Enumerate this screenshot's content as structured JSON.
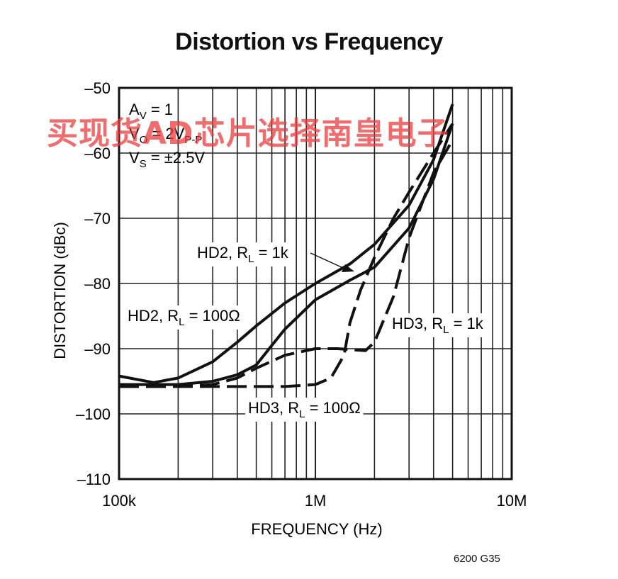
{
  "chart_data": {
    "type": "line",
    "title": "Distortion vs Frequency",
    "xlabel": "FREQUENCY (Hz)",
    "ylabel": "DISTORTION (dBc)",
    "xscale": "log",
    "xlim": [
      100000,
      10000000
    ],
    "ylim": [
      -110,
      -50
    ],
    "x_tick_labels": [
      {
        "value": 100000,
        "label": "100k"
      },
      {
        "value": 1000000,
        "label": "1M"
      },
      {
        "value": 10000000,
        "label": "10M"
      }
    ],
    "y_tick_labels": [
      {
        "value": -50,
        "label": "–50"
      },
      {
        "value": -60,
        "label": "–60"
      },
      {
        "value": -70,
        "label": "–70"
      },
      {
        "value": -80,
        "label": "–80"
      },
      {
        "value": -90,
        "label": "–90"
      },
      {
        "value": -100,
        "label": "–100"
      },
      {
        "value": -110,
        "label": "–110"
      }
    ],
    "grid": true,
    "legend": "none",
    "conditions": [
      {
        "main": "A",
        "sub": "V",
        "rest": " = 1"
      },
      {
        "main": "V",
        "sub": "O",
        "rest": " = 2V",
        "sub2": "P-P"
      },
      {
        "main": "V",
        "sub": "S",
        "rest": " = ±2.5V"
      }
    ],
    "series": [
      {
        "name": "HD2, RL = 100Ω",
        "style": "solid",
        "x": [
          100000,
          150000,
          200000,
          300000,
          400000,
          500000,
          700000,
          1000000,
          1500000,
          2000000,
          3000000,
          4000000,
          5000000
        ],
        "y": [
          -94.2,
          -95.2,
          -94.5,
          -92,
          -89,
          -86.5,
          -83,
          -80,
          -77,
          -74,
          -68,
          -61,
          -52.5
        ]
      },
      {
        "name": "HD2, RL = 1k",
        "style": "solid",
        "x": [
          100000,
          200000,
          300000,
          400000,
          500000,
          600000,
          700000,
          1000000,
          1500000,
          2000000,
          3000000,
          4000000,
          5000000
        ],
        "y": [
          -95.5,
          -95.5,
          -95,
          -94,
          -92.5,
          -89.5,
          -87,
          -82.5,
          -79.5,
          -77.5,
          -71.5,
          -64,
          -55.5
        ]
      },
      {
        "name": "HD3, RL = 1k",
        "style": "dashed",
        "x": [
          100000,
          150000,
          200000,
          300000,
          400000,
          500000,
          700000,
          1000000,
          1300000,
          1800000,
          2000000,
          2500000,
          3000000,
          4000000,
          5000000
        ],
        "y": [
          -95.8,
          -95.8,
          -95.8,
          -95.5,
          -94.5,
          -93,
          -91,
          -90,
          -90,
          -90.3,
          -89,
          -82,
          -73,
          -63,
          -58
        ]
      },
      {
        "name": "HD3, RL = 100Ω",
        "style": "dashed",
        "x": [
          100000,
          200000,
          300000,
          500000,
          700000,
          1000000,
          1200000,
          1400000,
          1500000,
          1700000,
          2000000,
          2500000,
          3000000,
          4000000,
          5000000
        ],
        "y": [
          -95.8,
          -95.8,
          -95.8,
          -95.8,
          -95.8,
          -95.5,
          -94.5,
          -91,
          -86,
          -81,
          -76,
          -70,
          -66,
          -60,
          -55.5
        ]
      }
    ],
    "annotations": [
      {
        "name": "HD2",
        "sub": "L",
        "value": "1k"
      },
      {
        "name": "HD2",
        "sub": "L",
        "value": "100Ω"
      },
      {
        "name": "HD3",
        "sub": "L",
        "value": "1k"
      },
      {
        "name": "HD3",
        "sub": "L",
        "value": "100Ω"
      }
    ]
  },
  "watermark": "买现货AD芯片选择南皇电子",
  "figure_code": "6200 G35"
}
